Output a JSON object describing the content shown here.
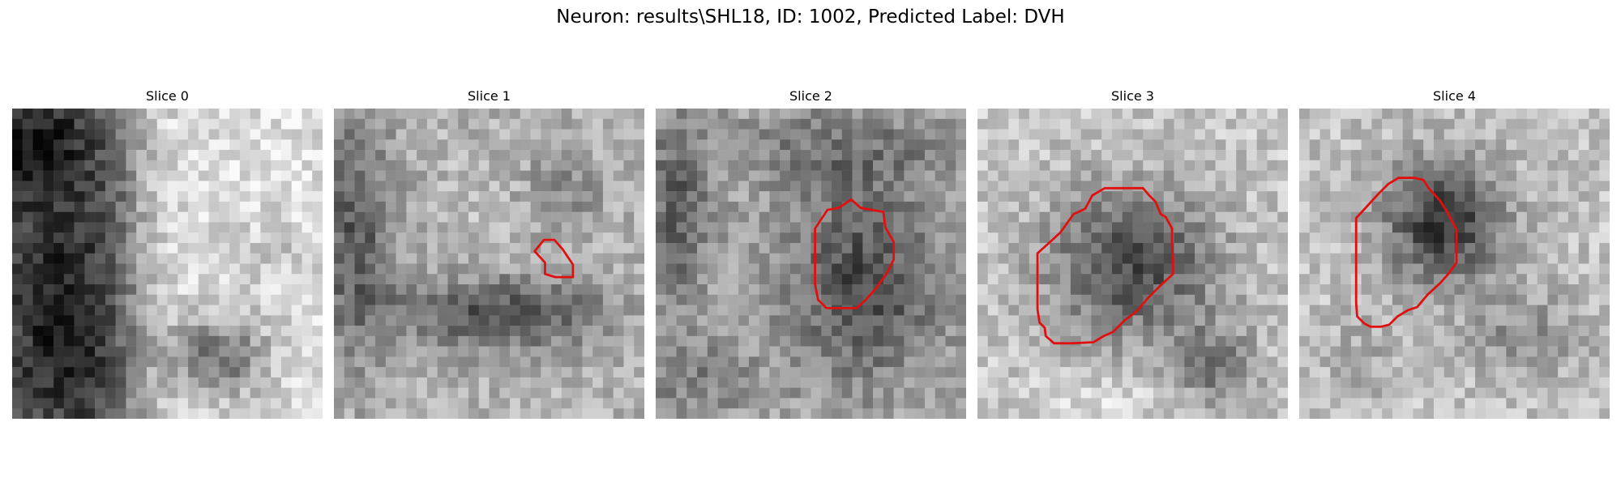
{
  "figure": {
    "title": "Neuron: results\\SHL18, ID: 1002, Predicted Label: DVH"
  },
  "panels": [
    {
      "title": "Slice 0",
      "has_contour": false
    },
    {
      "title": "Slice 1",
      "has_contour": true
    },
    {
      "title": "Slice 2",
      "has_contour": true
    },
    {
      "title": "Slice 3",
      "has_contour": true
    },
    {
      "title": "Slice 4",
      "has_contour": true
    }
  ],
  "colors": {
    "contour": "#e01010",
    "background": "#ffffff"
  }
}
